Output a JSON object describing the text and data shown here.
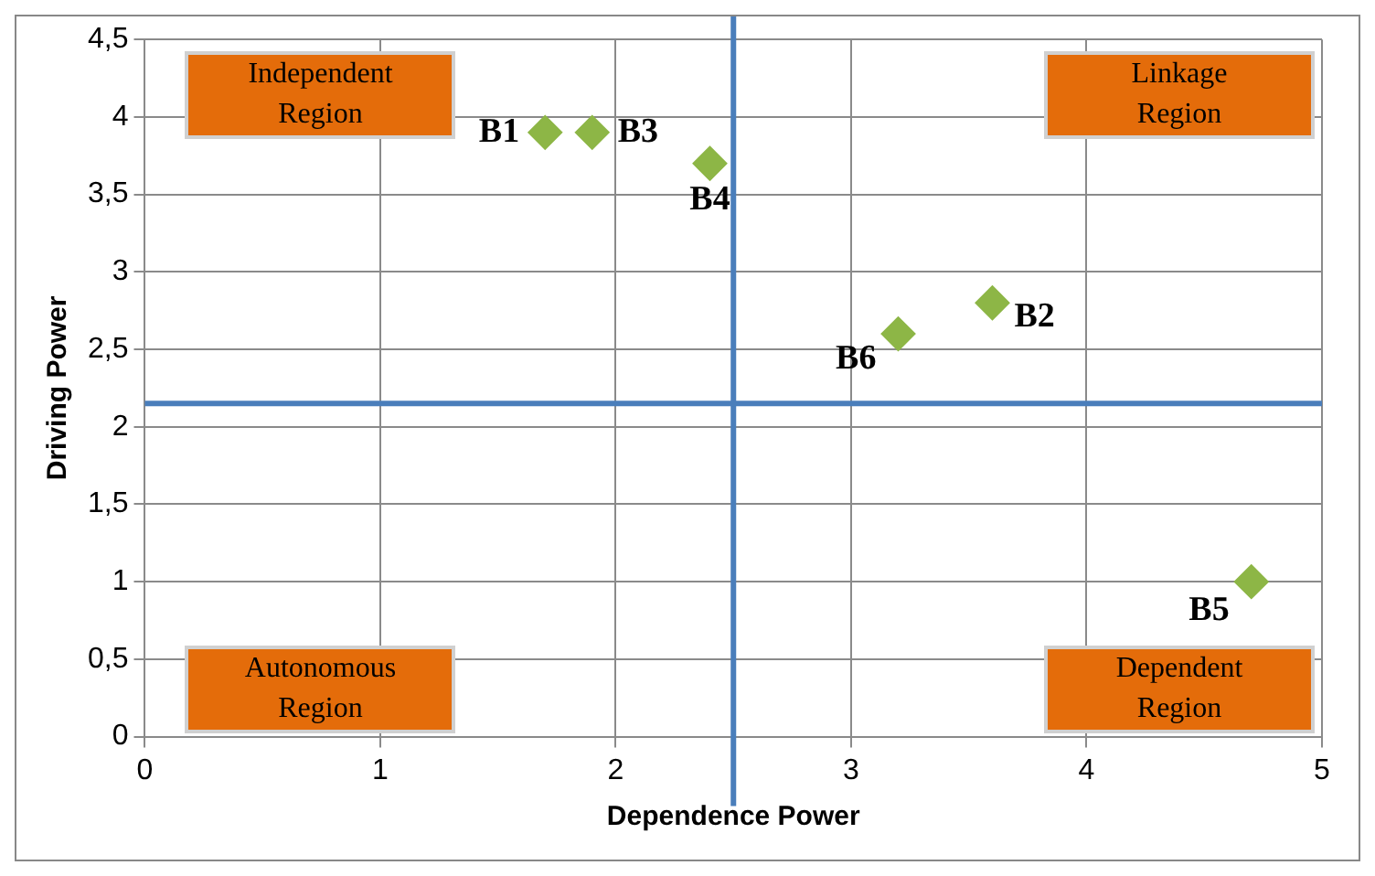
{
  "chart_data": {
    "type": "scatter",
    "xlabel": "Dependence Power",
    "ylabel": "Driving Power",
    "x": [
      1.7,
      3.6,
      1.9,
      2.4,
      4.7,
      3.2
    ],
    "series": [
      {
        "color": "#8db646",
        "values": [
          3.9,
          2.8,
          3.9,
          3.7,
          1.0,
          2.6
        ]
      }
    ],
    "marker": "diamond",
    "grid": true,
    "legend": false,
    "xlim": [
      0,
      5
    ],
    "xticks": [
      0,
      1,
      2,
      3,
      4,
      5
    ],
    "ylim": [
      0,
      4.5
    ],
    "yticks": [
      0,
      {
        "value": 0.5,
        "label": "0,5"
      },
      1,
      {
        "value": 1.5,
        "label": "1,5"
      },
      2,
      {
        "value": 2.5,
        "label": "2,5"
      },
      3,
      {
        "value": 3.5,
        "label": "3,5"
      },
      4,
      {
        "value": 4.5,
        "label": "4,5"
      }
    ],
    "ref_lines": [
      {
        "axis": "x",
        "value": 2.5,
        "color": "#4a7ebb"
      },
      {
        "axis": "y",
        "value": 2.15,
        "color": "#4a7ebb"
      }
    ],
    "annotations": [
      {
        "text": "B1",
        "x": 1.7,
        "y": 3.9
      },
      {
        "text": "B2",
        "x": 3.6,
        "y": 2.8
      },
      {
        "text": "B3",
        "x": 1.9,
        "y": 3.9
      },
      {
        "text": "B4",
        "x": 2.4,
        "y": 3.7
      },
      {
        "text": "B5",
        "x": 4.7,
        "y": 1.0
      },
      {
        "text": "B6",
        "x": 3.2,
        "y": 2.6
      },
      "Independent Region",
      "Linkage Region",
      "Autonomous Region",
      "Dependent Region"
    ]
  }
}
